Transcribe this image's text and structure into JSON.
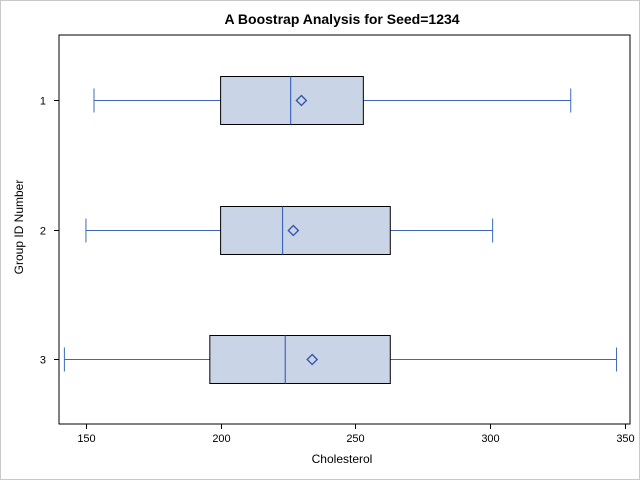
{
  "chart_data": {
    "type": "boxplot",
    "orientation": "horizontal",
    "title": "A Boostrap Analysis for Seed=1234",
    "xlabel": "Cholesterol",
    "ylabel": "Group ID Number",
    "xlim": [
      140,
      352
    ],
    "xticks": [
      150,
      200,
      250,
      300,
      350
    ],
    "categories": [
      "1",
      "2",
      "3"
    ],
    "series": [
      {
        "group": "1",
        "min": 153,
        "q1": 200,
        "median": 226,
        "q3": 253,
        "max": 330,
        "mean": 230
      },
      {
        "group": "2",
        "min": 150,
        "q1": 200,
        "median": 223,
        "q3": 263,
        "max": 301,
        "mean": 227
      },
      {
        "group": "3",
        "min": 142,
        "q1": 196,
        "median": 224,
        "q3": 263,
        "max": 347,
        "mean": 234
      }
    ],
    "grid": false,
    "colors": {
      "box_fill": "#c9d5e6",
      "box_edge": "#000000",
      "whisker": "#3d68b8",
      "median": "#3d68b8",
      "mean_marker": "#3450a8"
    }
  }
}
